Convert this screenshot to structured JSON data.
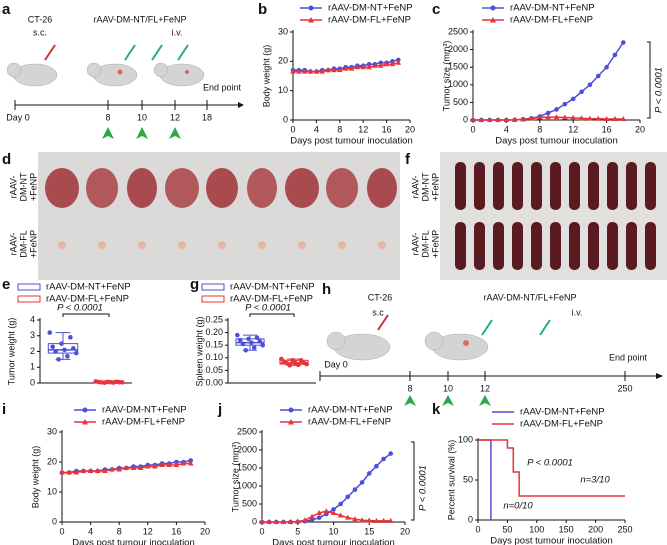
{
  "schematic_a": {
    "label": "a",
    "cell": "CT-26",
    "route1": "s.c.",
    "treatment": "rAAV-DM-NT/FL+FeNP",
    "route2": "i.v.",
    "end": "End point",
    "days": [
      "Day 0",
      "8",
      "10",
      "12",
      "18"
    ]
  },
  "photo_d": {
    "label": "d",
    "rows": [
      [
        "rAAV-",
        "DM-NT",
        "+FeNP"
      ],
      [
        "rAAV-",
        "DM-FL",
        "+FeNP"
      ]
    ]
  },
  "photo_f": {
    "label": "f",
    "rows": [
      [
        "rAAV-",
        "DM-NT",
        "+FeNP"
      ],
      [
        "rAAV-",
        "DM-FL",
        "+FeNP"
      ]
    ]
  },
  "schematic_h": {
    "label": "h",
    "cell": "CT-26",
    "route1": "s.c",
    "treatment": "rAAV-DM-NT/FL+FeNP",
    "route2": "i.v.",
    "end": "End point",
    "days": [
      "Day 0",
      "8",
      "10",
      "12",
      "250"
    ]
  },
  "chart_data": [
    {
      "label": "b",
      "type": "line",
      "x_label": "Days post tumour inoculation",
      "y_label": "Body weight (g)",
      "x": [
        0,
        1,
        2,
        3,
        4,
        5,
        6,
        7,
        8,
        9,
        10,
        11,
        12,
        13,
        14,
        15,
        16,
        17,
        18
      ],
      "xlim": [
        0,
        20
      ],
      "xticks": [
        0,
        4,
        8,
        12,
        16,
        20
      ],
      "ylim": [
        0,
        30
      ],
      "yticks": [
        0,
        10,
        20,
        30
      ],
      "series": [
        {
          "name": "rAAV-DM-NT+FeNP",
          "color": "#4c4fd8",
          "marker": "circle",
          "values": [
            17,
            17,
            17,
            16.5,
            16.5,
            17,
            17,
            17.5,
            17.5,
            18,
            18,
            18.5,
            18.5,
            19,
            19,
            19.5,
            19.5,
            20,
            20.5
          ]
        },
        {
          "name": "rAAV-DM-FL+FeNP",
          "color": "#e8343a",
          "marker": "triangle",
          "values": [
            16.5,
            16.5,
            16.5,
            16.5,
            16.5,
            16.5,
            17,
            17,
            17,
            17.5,
            17.5,
            18,
            18,
            18,
            18.5,
            18.5,
            19,
            19,
            19.5
          ]
        }
      ]
    },
    {
      "label": "c",
      "type": "line",
      "x_label": "Days post tumour inoculation",
      "y_label": "Tumor size (mm³)",
      "x": [
        0,
        1,
        2,
        3,
        4,
        5,
        6,
        7,
        8,
        9,
        10,
        11,
        12,
        13,
        14,
        15,
        16,
        17,
        18
      ],
      "xlim": [
        0,
        20
      ],
      "xticks": [
        0,
        4,
        8,
        12,
        16,
        20
      ],
      "ylim": [
        0,
        2500
      ],
      "yticks": [
        0,
        500,
        1000,
        1500,
        2000,
        2500
      ],
      "annotations": [
        "P < 0.0001"
      ],
      "series": [
        {
          "name": "rAAV-DM-NT+FeNP",
          "color": "#4c4fd8",
          "marker": "circle",
          "values": [
            0,
            0,
            0,
            0,
            0,
            5,
            20,
            50,
            100,
            200,
            300,
            450,
            600,
            800,
            1000,
            1250,
            1500,
            1850,
            2200
          ]
        },
        {
          "name": "rAAV-DM-FL+FeNP",
          "color": "#e8343a",
          "marker": "triangle",
          "values": [
            0,
            0,
            0,
            0,
            0,
            5,
            15,
            40,
            70,
            80,
            80,
            70,
            60,
            50,
            40,
            35,
            30,
            30,
            30
          ]
        }
      ]
    },
    {
      "label": "e",
      "type": "box",
      "y_label": "Tumor weight (g)",
      "ylim": [
        0,
        4
      ],
      "yticks": [
        0,
        1,
        2,
        3,
        4
      ],
      "annotations": [
        "P < 0.0001"
      ],
      "series": [
        {
          "name": "rAAV-DM-NT+FeNP",
          "color": "#4c4fd8",
          "box": [
            1.5,
            1.9,
            2.1,
            2.5,
            3.2
          ],
          "values": [
            3.2,
            2.9,
            2.5,
            2.3,
            2.2,
            2.1,
            2.0,
            1.9,
            1.7,
            1.5
          ]
        },
        {
          "name": "rAAV-DM-FL+FeNP",
          "color": "#e8343a",
          "box": [
            0.02,
            0.04,
            0.05,
            0.07,
            0.1
          ],
          "values": [
            0.1,
            0.08,
            0.07,
            0.06,
            0.05,
            0.05,
            0.04,
            0.04,
            0.03,
            0.02
          ]
        }
      ]
    },
    {
      "label": "g",
      "type": "box",
      "y_label": "Spleen weight (g)",
      "ylim": [
        0,
        0.25
      ],
      "yticks": [
        {
          "value": 0,
          "label": "0.00"
        },
        {
          "value": 0.05,
          "label": "0.05"
        },
        {
          "value": 0.1,
          "label": "0.10"
        },
        {
          "value": 0.15,
          "label": "0.15"
        },
        {
          "value": 0.2,
          "label": "0.20"
        },
        {
          "value": 0.25,
          "label": "0.25"
        }
      ],
      "annotations": [
        "P < 0.0001"
      ],
      "series": [
        {
          "name": "rAAV-DM-NT+FeNP",
          "color": "#4c4fd8",
          "box": [
            0.13,
            0.15,
            0.16,
            0.175,
            0.19
          ],
          "values": [
            0.19,
            0.18,
            0.175,
            0.17,
            0.165,
            0.16,
            0.155,
            0.15,
            0.14,
            0.13
          ]
        },
        {
          "name": "rAAV-DM-FL+FeNP",
          "color": "#e8343a",
          "box": [
            0.07,
            0.075,
            0.08,
            0.09,
            0.095
          ],
          "values": [
            0.095,
            0.09,
            0.09,
            0.085,
            0.08,
            0.08,
            0.078,
            0.075,
            0.072,
            0.07
          ]
        }
      ]
    },
    {
      "label": "i",
      "type": "line",
      "x_label": "Days post tumour inoculation",
      "y_label": "Body weight (g)",
      "x": [
        0,
        1,
        2,
        3,
        4,
        5,
        6,
        7,
        8,
        9,
        10,
        11,
        12,
        13,
        14,
        15,
        16,
        17,
        18
      ],
      "xlim": [
        0,
        20
      ],
      "xticks": [
        0,
        4,
        8,
        12,
        16,
        20
      ],
      "ylim": [
        0,
        30
      ],
      "yticks": [
        0,
        10,
        20,
        30
      ],
      "series": [
        {
          "name": "rAAV-DM-NT+FeNP",
          "color": "#4c4fd8",
          "marker": "circle",
          "values": [
            16.5,
            16.5,
            17,
            17,
            17,
            17,
            17.5,
            17.5,
            18,
            18,
            18.5,
            18.5,
            19,
            19,
            19.5,
            19.5,
            20,
            20,
            20.5
          ]
        },
        {
          "name": "rAAV-DM-FL+FeNP",
          "color": "#e8343a",
          "marker": "triangle",
          "values": [
            16.5,
            16.5,
            16.5,
            17,
            17,
            17,
            17,
            17.5,
            17.5,
            18,
            18,
            18,
            18.5,
            18.5,
            19,
            19,
            19,
            19.5,
            19.5
          ]
        }
      ]
    },
    {
      "label": "j",
      "type": "line",
      "x_label": "Days post tumour inoculation",
      "y_label": "Tumor size (mm³)",
      "x": [
        0,
        1,
        2,
        3,
        4,
        5,
        6,
        7,
        8,
        9,
        10,
        11,
        12,
        13,
        14,
        15,
        16,
        17,
        18
      ],
      "xlim": [
        0,
        20
      ],
      "xticks": [
        0,
        5,
        10,
        15,
        20
      ],
      "ylim": [
        0,
        2500
      ],
      "yticks": [
        0,
        500,
        1000,
        1500,
        2000,
        2500
      ],
      "annotations": [
        "P < 0.0001"
      ],
      "series": [
        {
          "name": "rAAV-DM-NT+FeNP",
          "color": "#4c4fd8",
          "marker": "circle",
          "values": [
            0,
            0,
            0,
            0,
            0,
            5,
            20,
            60,
            120,
            220,
            350,
            500,
            700,
            900,
            1100,
            1350,
            1550,
            1750,
            1900
          ]
        },
        {
          "name": "rAAV-DM-FL+FeNP",
          "color": "#e8343a",
          "marker": "triangle",
          "values": [
            0,
            0,
            0,
            0,
            0,
            10,
            50,
            150,
            250,
            300,
            250,
            180,
            120,
            80,
            50,
            40,
            30,
            30,
            30
          ]
        }
      ]
    },
    {
      "label": "k",
      "type": "line",
      "step": true,
      "x_label": "Days post tumour inoculation",
      "y_label": "Percent survival (%)",
      "xlim": [
        0,
        250
      ],
      "xticks": [
        0,
        50,
        100,
        150,
        200,
        250
      ],
      "ylim": [
        0,
        100
      ],
      "yticks": [
        0,
        50,
        100
      ],
      "annotations": [
        "P < 0.0001",
        "n=0/10",
        "n=3/10"
      ],
      "series": [
        {
          "name": "rAAV-DM-NT+FeNP",
          "color": "#4c4fd8",
          "x": [
            0,
            22
          ],
          "values": [
            100,
            0
          ]
        },
        {
          "name": "rAAV-DM-FL+FeNP",
          "color": "#e8343a",
          "x": [
            0,
            50,
            60,
            70,
            250
          ],
          "values": [
            100,
            90,
            60,
            30,
            30
          ]
        }
      ]
    }
  ]
}
